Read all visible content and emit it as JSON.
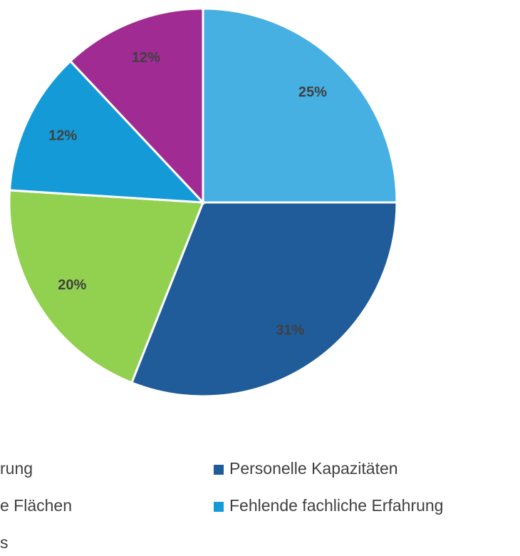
{
  "chart_data": {
    "type": "pie",
    "categories": [
      "rung",
      "Personelle Kapazitäten",
      "e Flächen",
      "Fehlende fachliche Erfahrung",
      "s"
    ],
    "values": [
      25,
      31,
      20,
      12,
      12
    ],
    "value_labels": [
      "25%",
      "31%",
      "20%",
      "12%",
      "12%"
    ],
    "colors": [
      "#45B0E1",
      "#1F5C99",
      "#92D050",
      "#149BD7",
      "#A02B93"
    ],
    "legend": "bottom"
  }
}
